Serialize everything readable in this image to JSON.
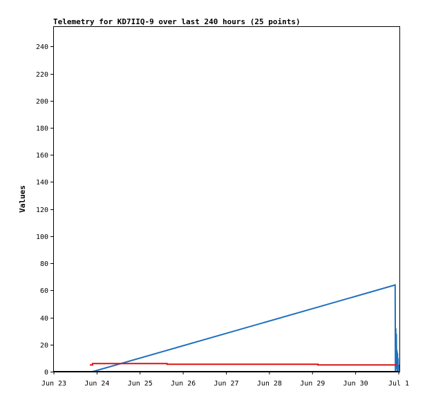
{
  "chart_data": {
    "type": "line",
    "title": "Telemetry for KD7IIQ-9 over last 240 hours (25 points)",
    "xlabel": "",
    "ylabel": "Values",
    "x_tick_labels": [
      "Jun 23",
      "Jun 24",
      "Jun 25",
      "Jun 26",
      "Jun 27",
      "Jun 28",
      "Jun 29",
      "Jun 30",
      "Jul 1"
    ],
    "ylim": [
      0,
      255
    ],
    "y_ticks": [
      0,
      20,
      40,
      60,
      80,
      100,
      120,
      140,
      160,
      180,
      200,
      220,
      240
    ],
    "grid": false,
    "legend": "none",
    "series": [
      {
        "color": "#1f6fbf",
        "x": [
          "2023-06-23 21:30",
          "2023-06-30 22:00",
          "2023-06-30 22:10",
          "2023-06-30 22:20",
          "2023-06-30 22:30",
          "2023-06-30 22:40",
          "2023-06-30 22:50",
          "2023-06-30 23:00",
          "2023-06-30 23:10",
          "2023-06-30 23:20",
          "2023-06-30 23:30",
          "2023-06-30 23:40",
          "2023-06-30 23:50",
          "2023-07-01 00:00"
        ],
        "y": [
          0,
          64,
          0,
          32,
          5,
          28,
          2,
          16,
          0,
          14,
          3,
          10,
          0,
          5
        ]
      },
      {
        "color": "#dd1111",
        "x": [
          "2023-06-23 20:00",
          "2023-06-23 21:30",
          "2023-06-23 21:30",
          "2023-06-25 15:00",
          "2023-06-25 15:00",
          "2023-06-29 03:00",
          "2023-06-29 03:00",
          "2023-06-30 23:00"
        ],
        "y": [
          5,
          5,
          6,
          6,
          5.5,
          5.5,
          5,
          5
        ]
      },
      {
        "color": "#000000",
        "x": [
          "2023-06-23 00:00",
          "2023-07-01 00:00"
        ],
        "y": [
          0,
          0
        ]
      }
    ]
  }
}
